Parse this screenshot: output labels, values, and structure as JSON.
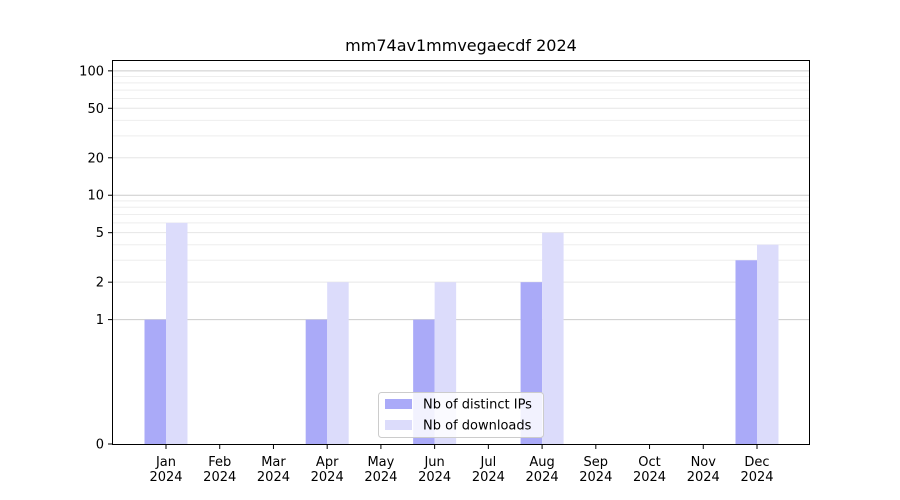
{
  "chart_data": {
    "type": "bar",
    "title": "mm74av1mmvegaecdf 2024",
    "xlabel": "",
    "ylabel": "",
    "y_scale": "symlog",
    "ylim": [
      0,
      120
    ],
    "y_ticks": [
      0,
      1,
      2,
      5,
      10,
      20,
      50,
      100
    ],
    "grid": "horizontal",
    "legend_position": "lower-center",
    "categories": [
      [
        "Jan",
        "2024"
      ],
      [
        "Feb",
        "2024"
      ],
      [
        "Mar",
        "2024"
      ],
      [
        "Apr",
        "2024"
      ],
      [
        "May",
        "2024"
      ],
      [
        "Jun",
        "2024"
      ],
      [
        "Jul",
        "2024"
      ],
      [
        "Aug",
        "2024"
      ],
      [
        "Sep",
        "2024"
      ],
      [
        "Oct",
        "2024"
      ],
      [
        "Nov",
        "2024"
      ],
      [
        "Dec",
        "2024"
      ]
    ],
    "series": [
      {
        "name": "Nb of distinct IPs",
        "color": "#aaaaf8",
        "values": [
          1,
          0,
          0,
          1,
          0,
          1,
          0,
          2,
          0,
          0,
          0,
          3
        ]
      },
      {
        "name": "Nb of downloads",
        "color": "#dcdcfb",
        "values": [
          6,
          0,
          0,
          2,
          0,
          2,
          0,
          5,
          0,
          0,
          0,
          4
        ]
      }
    ]
  }
}
